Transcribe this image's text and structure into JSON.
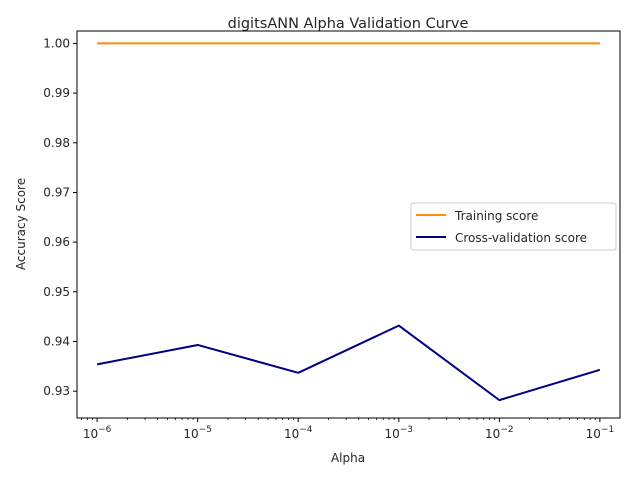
{
  "chart_data": {
    "type": "line",
    "title": "digitsANN Alpha Validation Curve",
    "xlabel": "Alpha",
    "ylabel": "Accuracy Score",
    "xscale": "log",
    "x": [
      1e-06,
      1e-05,
      0.0001,
      0.001,
      0.01,
      0.1
    ],
    "xticks": [
      {
        "value": 1e-06,
        "base": "10",
        "exp": "−6"
      },
      {
        "value": 1e-05,
        "base": "10",
        "exp": "−5"
      },
      {
        "value": 0.0001,
        "base": "10",
        "exp": "−4"
      },
      {
        "value": 0.001,
        "base": "10",
        "exp": "−3"
      },
      {
        "value": 0.01,
        "base": "10",
        "exp": "−2"
      },
      {
        "value": 0.1,
        "base": "10",
        "exp": "−1"
      }
    ],
    "ylim": [
      0.9246,
      1.0025
    ],
    "yticks": [
      0.93,
      0.94,
      0.95,
      0.96,
      0.97,
      0.98,
      0.99,
      1.0
    ],
    "ytick_labels": [
      "0.93",
      "0.94",
      "0.95",
      "0.96",
      "0.97",
      "0.98",
      "0.99",
      "1.00"
    ],
    "grid": false,
    "legend_position": "center-right",
    "series": [
      {
        "name": "Training score",
        "color": "#ff8c00",
        "values": [
          1.0,
          1.0,
          1.0,
          1.0,
          1.0,
          1.0
        ]
      },
      {
        "name": "Cross-validation score",
        "color": "#000080",
        "values": [
          0.9354,
          0.9393,
          0.9337,
          0.9432,
          0.9282,
          0.9343
        ]
      }
    ]
  }
}
